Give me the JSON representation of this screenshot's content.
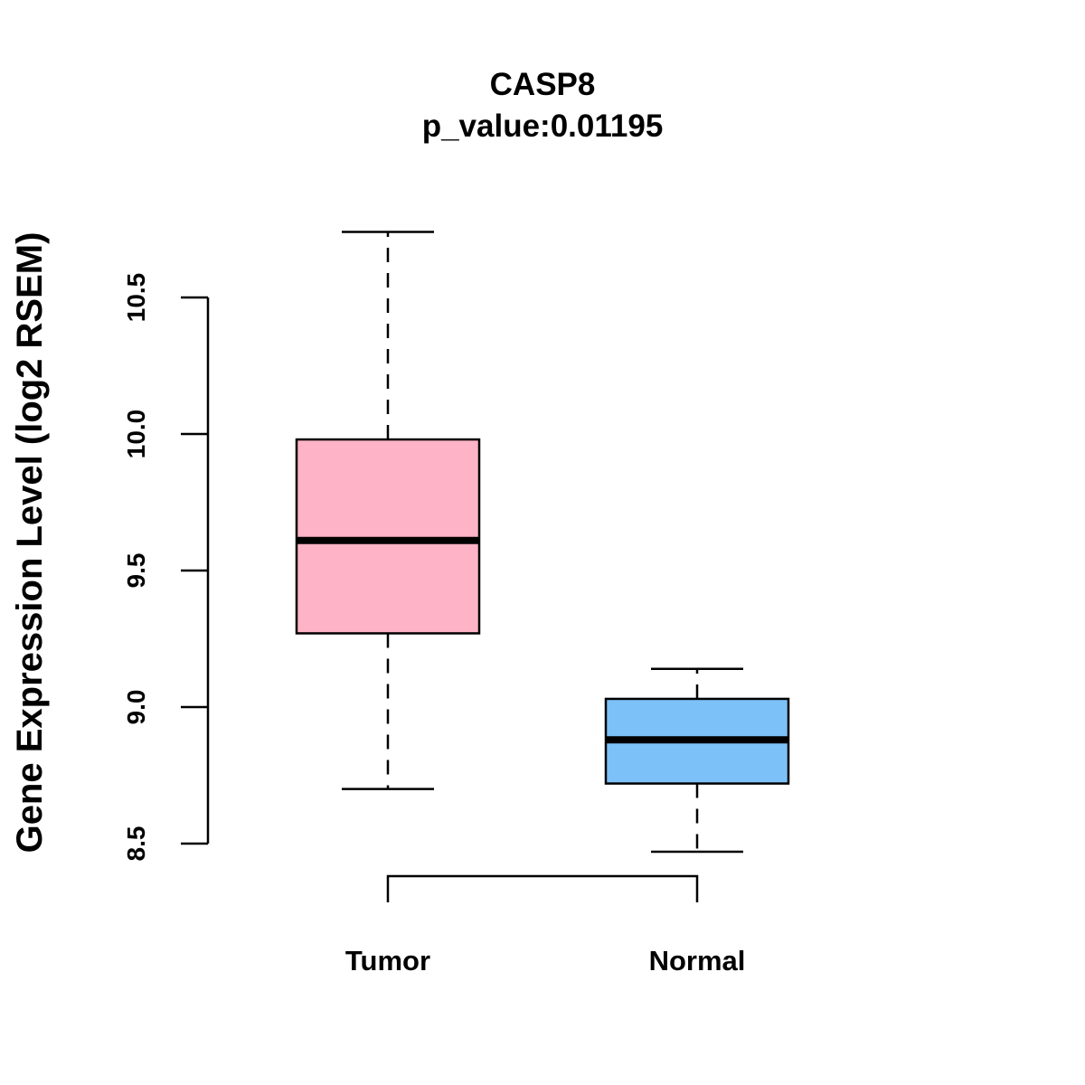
{
  "chart_data": {
    "type": "boxplot",
    "title": "CASP8",
    "subtitle": "p_value:0.01195",
    "xlabel": "",
    "ylabel": "Gene Expression Level (log2 RSEM)",
    "ylim": [
      8.5,
      10.5
    ],
    "yticks": [
      8.5,
      9.0,
      9.5,
      10.0,
      10.5
    ],
    "ytick_labels": [
      "8.5",
      "9.0",
      "9.5",
      "10.0",
      "10.5"
    ],
    "grid": false,
    "categories": [
      "Tumor",
      "Normal"
    ],
    "boxes": [
      {
        "name": "Tumor",
        "whisker_low": 8.7,
        "q1": 9.27,
        "median": 9.61,
        "q3": 9.98,
        "whisker_high": 10.74,
        "color": "#FFB3C6"
      },
      {
        "name": "Normal",
        "whisker_low": 8.47,
        "q1": 8.72,
        "median": 8.88,
        "q3": 9.03,
        "whisker_high": 9.14,
        "color": "#7DC1F9"
      }
    ],
    "comparison_bracket": {
      "from": "Tumor",
      "to": "Normal"
    }
  }
}
